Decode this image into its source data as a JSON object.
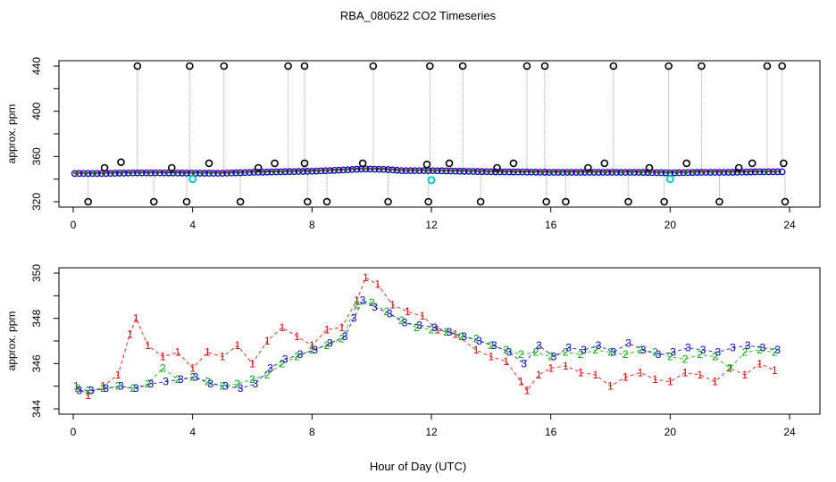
{
  "title": "RBA_080622  CO2 Timeseries",
  "xlabel": "Hour of Day (UTC)",
  "chart_data": [
    {
      "type": "scatter",
      "panel": "top",
      "ylabel": "approx. ppm",
      "xlim": [
        0,
        24
      ],
      "ylim": [
        320,
        440
      ],
      "x_ticks": [
        0,
        4,
        8,
        12,
        16,
        20,
        24
      ],
      "y_ticks": [
        320,
        360,
        400,
        440
      ],
      "y_minor_ticks": [
        340,
        380,
        420
      ],
      "baseline": {
        "x": [
          0,
          1,
          2,
          3,
          4,
          5,
          6,
          7,
          8,
          9,
          9.7,
          10.5,
          11,
          12,
          13,
          14,
          15,
          16,
          17,
          18,
          19,
          20,
          21,
          22,
          23,
          23.8
        ],
        "y": [
          345,
          345,
          345.5,
          345.5,
          345.3,
          345.2,
          346,
          346.5,
          347,
          348,
          349,
          348.5,
          347.5,
          347.5,
          347,
          346.5,
          346.3,
          346,
          346,
          346,
          346,
          345.5,
          346,
          346,
          346.5,
          346.5
        ]
      },
      "spikes_high": [
        2.15,
        3.9,
        5.05,
        7.2,
        7.75,
        10.05,
        11.95,
        13.05,
        15.2,
        15.8,
        18.1,
        19.95,
        21.05,
        23.25,
        23.75
      ],
      "spikes_low": [
        0.5,
        2.7,
        3.8,
        5.6,
        7.85,
        8.5,
        10.55,
        11.9,
        13.65,
        15.85,
        16.5,
        18.6,
        19.8,
        21.65,
        23.85
      ],
      "mid_outliers": [
        {
          "x": 1.05,
          "y": 350
        },
        {
          "x": 1.6,
          "y": 355
        },
        {
          "x": 3.3,
          "y": 350
        },
        {
          "x": 4.55,
          "y": 354
        },
        {
          "x": 6.2,
          "y": 350
        },
        {
          "x": 6.75,
          "y": 354
        },
        {
          "x": 7.75,
          "y": 354
        },
        {
          "x": 9.7,
          "y": 354
        },
        {
          "x": 11.85,
          "y": 353
        },
        {
          "x": 12.6,
          "y": 354
        },
        {
          "x": 14.2,
          "y": 350
        },
        {
          "x": 14.75,
          "y": 354
        },
        {
          "x": 17.25,
          "y": 350
        },
        {
          "x": 17.8,
          "y": 354
        },
        {
          "x": 19.3,
          "y": 350
        },
        {
          "x": 20.55,
          "y": 354
        },
        {
          "x": 22.3,
          "y": 350
        },
        {
          "x": 22.75,
          "y": 354
        },
        {
          "x": 23.8,
          "y": 354
        }
      ],
      "cyan_points": [
        {
          "x": 4.0,
          "y": 340
        },
        {
          "x": 12.0,
          "y": 339
        },
        {
          "x": 20.0,
          "y": 340
        }
      ]
    },
    {
      "type": "scatter",
      "panel": "bottom",
      "ylabel": "approx. ppm",
      "xlim": [
        0,
        24
      ],
      "ylim": [
        344,
        350
      ],
      "x_ticks": [
        0,
        4,
        8,
        12,
        16,
        20,
        24
      ],
      "y_ticks": [
        344,
        346,
        348,
        350
      ],
      "y_minor_ticks": [
        345,
        347,
        349
      ],
      "series": [
        {
          "name": "1",
          "color": "#dd0000",
          "x": [
            0.1,
            0.5,
            1,
            1.5,
            1.9,
            2.1,
            2.5,
            3,
            3.5,
            4,
            4.5,
            5,
            5.5,
            6,
            6.5,
            7,
            7.5,
            8,
            8.5,
            9,
            9.5,
            9.8,
            10.2,
            10.7,
            11.2,
            11.7,
            12.2,
            12.8,
            13.5,
            14,
            14.5,
            15,
            15.2,
            15.6,
            16,
            16.5,
            17,
            17.5,
            18,
            18.5,
            19,
            19.5,
            20,
            20.5,
            21,
            21.5,
            22,
            22.5,
            23,
            23.5
          ],
          "y": [
            345,
            344.6,
            345,
            345.5,
            347.3,
            348,
            346.8,
            346.3,
            346.5,
            345.8,
            346.5,
            346.3,
            346.8,
            346,
            347,
            347.6,
            347.2,
            346.8,
            347.5,
            347.6,
            348.8,
            349.8,
            349.5,
            348.6,
            348.3,
            348.1,
            347.5,
            347.3,
            346.6,
            346.3,
            346.1,
            345.2,
            344.8,
            345.5,
            345.8,
            345.9,
            345.6,
            345.5,
            345,
            345.4,
            345.6,
            345.3,
            345.2,
            345.6,
            345.5,
            345.2,
            345.8,
            345.5,
            346,
            345.7
          ]
        },
        {
          "name": "2",
          "color": "#00aa00",
          "x": [
            0.15,
            0.5,
            1,
            1.5,
            2,
            2.5,
            3,
            3.5,
            4,
            4.5,
            5,
            5.5,
            6,
            6.5,
            7,
            7.5,
            8,
            8.5,
            9,
            9.5,
            10,
            10.5,
            11,
            11.5,
            12,
            12.5,
            13,
            13.5,
            14,
            14.5,
            15,
            15.5,
            16,
            16.5,
            17,
            17.5,
            18,
            18.5,
            19,
            19.5,
            20,
            20.5,
            21,
            21.5,
            22,
            22.5,
            23,
            23.5
          ],
          "y": [
            344.9,
            344.8,
            344.9,
            345,
            344.9,
            345.1,
            345.8,
            345.3,
            345.4,
            345.2,
            345,
            345.1,
            345.3,
            345.5,
            346,
            346.3,
            346.6,
            346.8,
            347.1,
            348.6,
            348.7,
            348.3,
            347.9,
            347.6,
            347.5,
            347.4,
            347.2,
            347.1,
            346.8,
            346.6,
            346.4,
            346.5,
            346.3,
            346.5,
            346.4,
            346.6,
            346.5,
            346.4,
            346.6,
            346.5,
            346.3,
            346.2,
            346.4,
            346.3,
            345.8,
            346.5,
            346.6,
            346.5
          ]
        },
        {
          "name": "3",
          "color": "#0000cc",
          "x": [
            0.2,
            0.6,
            1.1,
            1.6,
            2.1,
            2.6,
            3.1,
            3.6,
            4.1,
            4.6,
            5.1,
            5.6,
            6.1,
            6.6,
            7.1,
            7.6,
            8.1,
            8.6,
            9.1,
            9.4,
            9.7,
            10.1,
            10.6,
            11.1,
            11.6,
            12.1,
            12.6,
            13.1,
            13.6,
            14.1,
            14.6,
            15.1,
            15.6,
            16.1,
            16.6,
            17.1,
            17.6,
            18.1,
            18.6,
            19.1,
            19.6,
            20.1,
            20.6,
            21.1,
            21.6,
            22.1,
            22.6,
            23.1,
            23.6
          ],
          "y": [
            344.8,
            344.8,
            344.9,
            345,
            344.9,
            345.1,
            345.2,
            345.3,
            345.4,
            345.1,
            345,
            344.9,
            345.1,
            345.8,
            346.2,
            346.4,
            346.6,
            346.9,
            347.2,
            348,
            348.8,
            348.5,
            348.2,
            347.8,
            347.7,
            347.6,
            347.4,
            347.2,
            347,
            346.8,
            346.5,
            346,
            346.8,
            346.3,
            346.7,
            346.6,
            346.8,
            346.5,
            346.9,
            346.6,
            346.4,
            346.5,
            346.7,
            346.6,
            346.5,
            346.7,
            346.8,
            346.7,
            346.6
          ]
        }
      ]
    }
  ]
}
